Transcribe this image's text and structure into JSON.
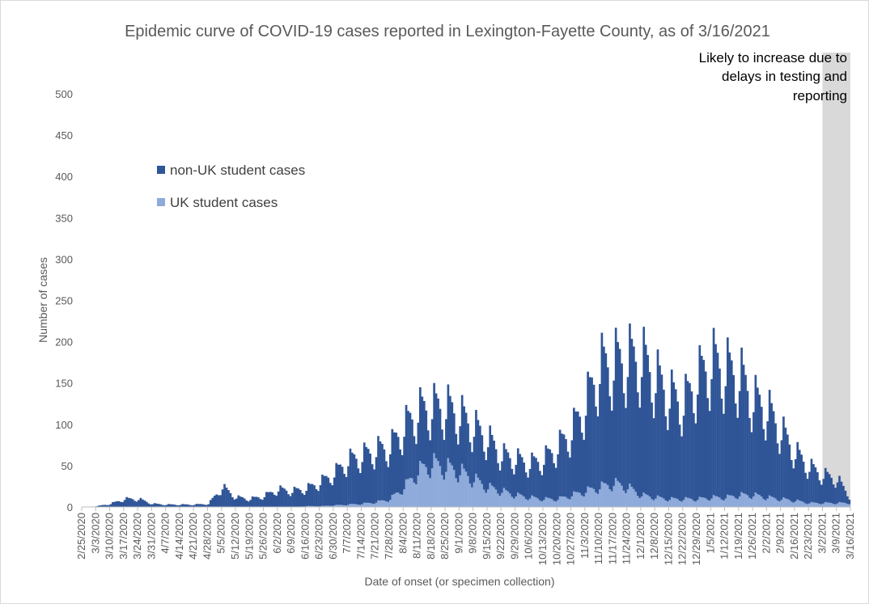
{
  "chart_data": {
    "type": "bar",
    "stacked": true,
    "title": "Epidemic curve of COVID-19 cases reported in Lexington-Fayette County, as of 3/16/2021",
    "xlabel": "Date of onset (or specimen collection)",
    "ylabel": "Number of cases",
    "ylim": [
      0,
      500
    ],
    "yticks": [
      0,
      50,
      100,
      150,
      200,
      250,
      300,
      350,
      400,
      450,
      500
    ],
    "grid": false,
    "legend": "upper-left",
    "x_start": "2/25/2020",
    "x_end": "3/16/2021",
    "x_tick_labels": [
      "2/25/2020",
      "3/3/2020",
      "3/10/2020",
      "3/17/2020",
      "3/24/2020",
      "3/31/2020",
      "4/7/2020",
      "4/14/2020",
      "4/21/2020",
      "4/28/2020",
      "5/5/2020",
      "5/12/2020",
      "5/19/2020",
      "5/26/2020",
      "6/2/2020",
      "6/9/2020",
      "6/16/2020",
      "6/23/2020",
      "6/30/2020",
      "7/7/2020",
      "7/14/2020",
      "7/21/2020",
      "7/28/2020",
      "8/4/2020",
      "8/11/2020",
      "8/18/2020",
      "8/25/2020",
      "9/1/2020",
      "9/8/2020",
      "9/15/2020",
      "9/22/2020",
      "9/29/2020",
      "10/6/2020",
      "10/13/2020",
      "10/20/2020",
      "10/27/2020",
      "11/3/2020",
      "11/10/2020",
      "11/17/2020",
      "11/24/2020",
      "12/1/2020",
      "12/8/2020",
      "12/15/2020",
      "12/22/2020",
      "12/29/2020",
      "1/5/2021",
      "1/12/2021",
      "1/19/2021",
      "1/26/2021",
      "2/2/2021",
      "2/9/2021",
      "2/16/2021",
      "2/23/2021",
      "3/2/2021",
      "3/9/2021",
      "3/16/2021"
    ],
    "series": [
      {
        "name": "non-UK student cases",
        "color": "#2f5597",
        "weekly_values": [
          0,
          1,
          4,
          10,
          10,
          4,
          3,
          3,
          3,
          4,
          25,
          12,
          10,
          14,
          22,
          20,
          22,
          30,
          40,
          55,
          60,
          65,
          65,
          75,
          75,
          70,
          75,
          70,
          65,
          60,
          45,
          45,
          42,
          50,
          65,
          80,
          110,
          150,
          150,
          160,
          170,
          150,
          130,
          120,
          150,
          170,
          160,
          150,
          120,
          110,
          85,
          60,
          45,
          35,
          30,
          5
        ]
      },
      {
        "name": "UK student cases",
        "color": "#8eaadb",
        "weekly_values": [
          0,
          0,
          0,
          0,
          0,
          0,
          0,
          0,
          0,
          0,
          0,
          0,
          0,
          0,
          0,
          0,
          1,
          1,
          2,
          3,
          4,
          6,
          10,
          25,
          45,
          55,
          50,
          45,
          35,
          25,
          20,
          15,
          12,
          10,
          10,
          15,
          20,
          25,
          30,
          25,
          15,
          12,
          10,
          10,
          10,
          12,
          12,
          15,
          15,
          12,
          10,
          8,
          5,
          5,
          5,
          5
        ]
      }
    ],
    "annotation": {
      "text_lines": [
        "Likely to increase due to",
        "delays in testing and",
        "reporting"
      ],
      "shaded_from": "3/2/2021",
      "shaded_to": "3/16/2021",
      "shade_color": "#d9d9d9"
    }
  }
}
